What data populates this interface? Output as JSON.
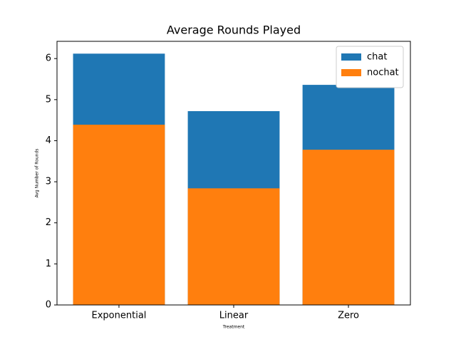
{
  "chart_data": {
    "type": "bar",
    "title": "Average Rounds Played",
    "xlabel": "Treatment",
    "ylabel": "Avg Number of Rounds",
    "categories": [
      "Exponential",
      "Linear",
      "Zero"
    ],
    "barmode": "overlay",
    "series": [
      {
        "name": "chat",
        "color": "#1f77b4",
        "values": [
          6.12,
          4.72,
          5.36
        ]
      },
      {
        "name": "nochat",
        "color": "#ff7f0e",
        "values": [
          4.39,
          2.84,
          3.78
        ]
      }
    ],
    "ylim": [
      0,
      6.42
    ],
    "yticks": [
      0,
      1,
      2,
      3,
      4,
      5,
      6
    ],
    "legend": "upper right"
  }
}
